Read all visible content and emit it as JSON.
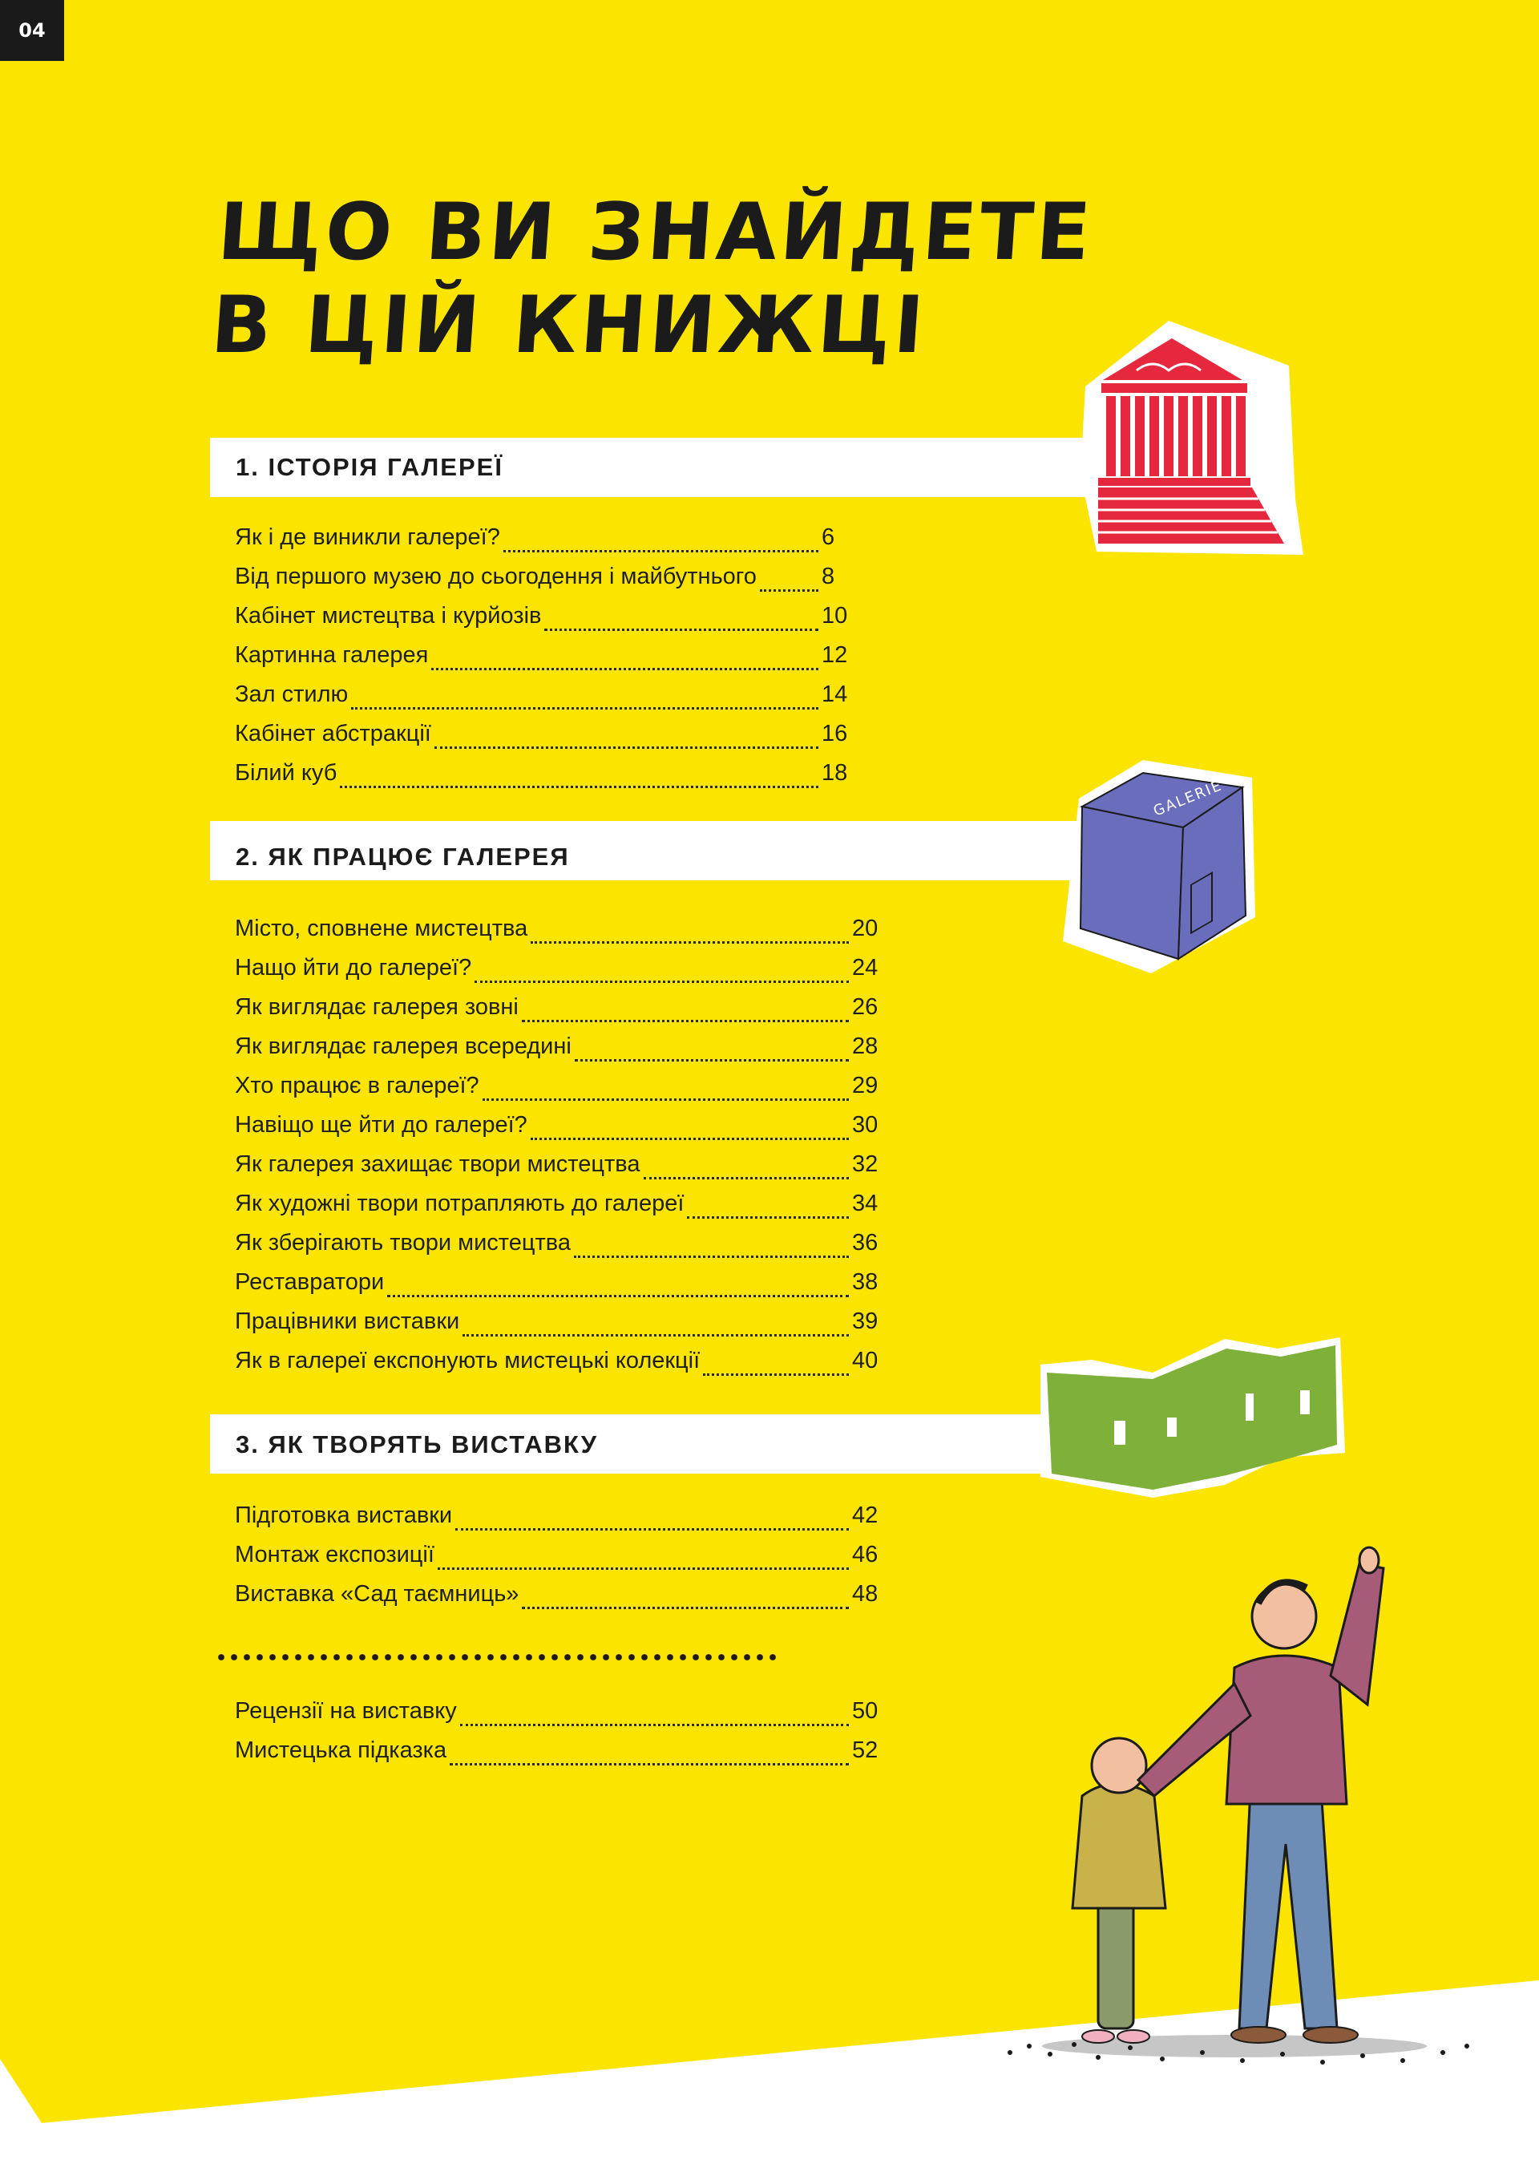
{
  "page_number": "04",
  "title": {
    "line1": "Що ви знайдете",
    "line2": "в цій книжці"
  },
  "sections": [
    {
      "heading": "1. Історія галереї",
      "items": [
        {
          "title": "Як і де виникли галереї?",
          "page": "6"
        },
        {
          "title": "Від першого музею до сьогодення і майбутнього",
          "page": "8"
        },
        {
          "title": "Кабінет мистецтва і курйозів",
          "page": "10"
        },
        {
          "title": "Картинна галерея",
          "page": "12"
        },
        {
          "title": "Зал стилю",
          "page": "14"
        },
        {
          "title": "Кабінет абстракції",
          "page": "16"
        },
        {
          "title": "Білий куб",
          "page": "18"
        }
      ]
    },
    {
      "heading": "2. Як працює галерея",
      "items": [
        {
          "title": "Місто, сповнене мистецтва",
          "page": "20"
        },
        {
          "title": "Нащо йти до галереї?",
          "page": "24"
        },
        {
          "title": "Як виглядає галерея зовні",
          "page": "26"
        },
        {
          "title": "Як виглядає галерея всередині",
          "page": "28"
        },
        {
          "title": "Хто працює в галереї?",
          "page": "29"
        },
        {
          "title": "Навіщо ще йти до галереї?",
          "page": "30"
        },
        {
          "title": "Як галерея захищає твори мистецтва",
          "page": "32"
        },
        {
          "title": "Як художні твори потрапляють до галереї",
          "page": "34"
        },
        {
          "title": "Як зберігають твори мистецтва",
          "page": "36"
        },
        {
          "title": "Реставратори",
          "page": "38"
        },
        {
          "title": "Працівники виставки",
          "page": "39"
        },
        {
          "title": "Як в галереї експонують мистецькі колекції",
          "page": "40"
        }
      ]
    },
    {
      "heading": "3. Як творять виставку",
      "items": [
        {
          "title": "Підготовка виставки",
          "page": "42"
        },
        {
          "title": "Монтаж експозиції",
          "page": "46"
        },
        {
          "title": "Виставка «Сад таємниць»",
          "page": "48"
        }
      ]
    }
  ],
  "extra_items": [
    {
      "title": "Рецензії на виставку",
      "page": "50"
    },
    {
      "title": "Мистецька підказка",
      "page": "52"
    }
  ],
  "illustrations": {
    "cube_sign": "GALERIE"
  },
  "colors": {
    "background": "#fbe500",
    "temple": "#e5283d",
    "cube": "#6a6dbb",
    "wall": "#7fb03a",
    "ink": "#1b1b1b"
  }
}
